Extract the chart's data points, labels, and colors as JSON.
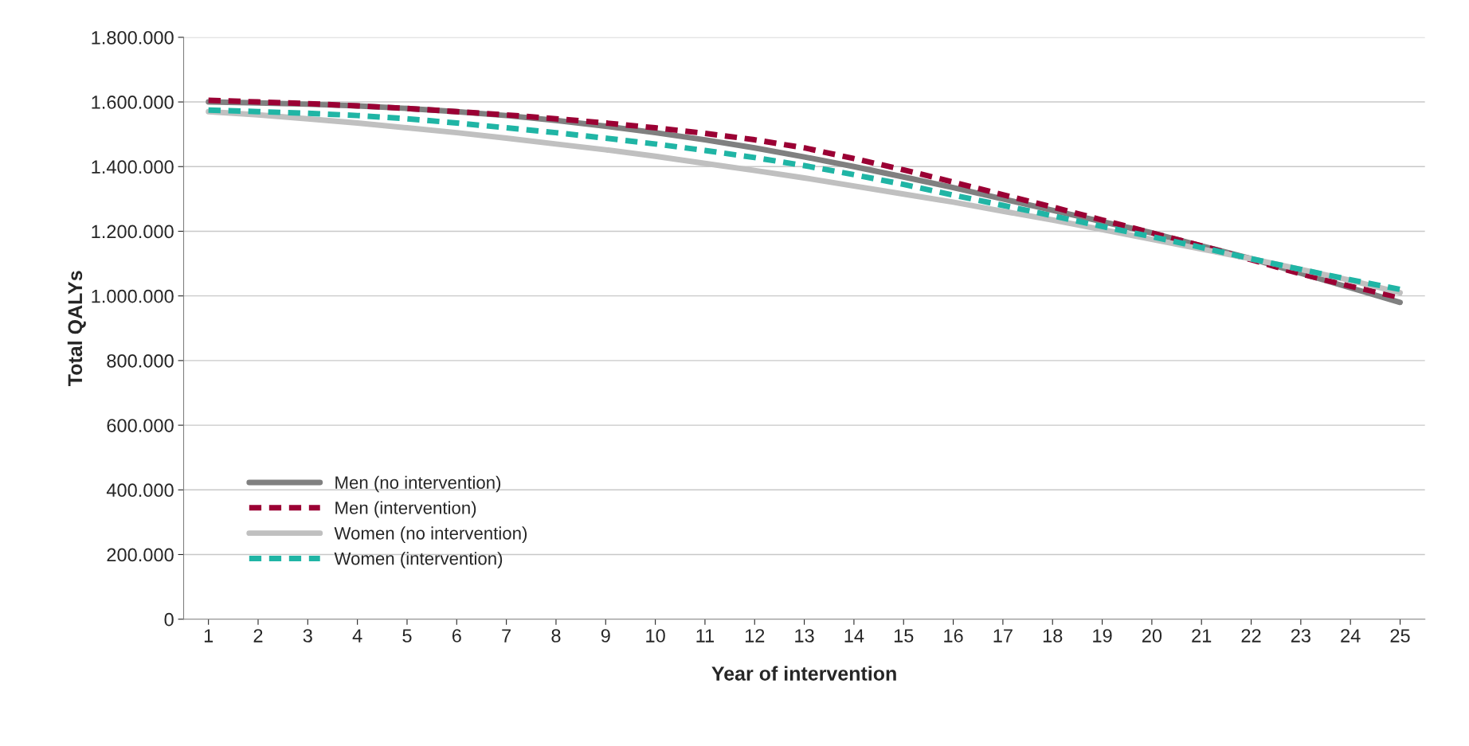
{
  "chart_data": {
    "type": "line",
    "xlabel": "Year of intervention",
    "ylabel": "Total QALYs",
    "categories": [
      "1",
      "2",
      "3",
      "4",
      "5",
      "6",
      "7",
      "8",
      "9",
      "10",
      "11",
      "12",
      "13",
      "14",
      "15",
      "16",
      "17",
      "18",
      "19",
      "20",
      "21",
      "22",
      "23",
      "24",
      "25"
    ],
    "ylim": [
      0,
      1800000
    ],
    "yticks": [
      0,
      {
        "value": 200000,
        "label": "200.000"
      },
      {
        "value": 400000,
        "label": "400.000"
      },
      {
        "value": 600000,
        "label": "600.000"
      },
      {
        "value": 800000,
        "label": "800.000"
      },
      {
        "value": 1000000,
        "label": "1.000.000"
      },
      {
        "value": 1200000,
        "label": "1.200.000"
      },
      {
        "value": 1400000,
        "label": "1.400.000"
      },
      {
        "value": 1600000,
        "label": "1.600.000"
      },
      {
        "value": 1800000,
        "label": "1.800.000"
      }
    ],
    "grid": "y",
    "legend": "bottom left",
    "marker": "none",
    "series": [
      {
        "name": "Men (no intervention)",
        "color": "#808080",
        "line_style": "solid",
        "values": [
          1600000,
          1597000,
          1593000,
          1588000,
          1580000,
          1570000,
          1558000,
          1543000,
          1525000,
          1505000,
          1483000,
          1458000,
          1430000,
          1400000,
          1368000,
          1335000,
          1300000,
          1265000,
          1230000,
          1195000,
          1155000,
          1115000,
          1070000,
          1025000,
          980000
        ]
      },
      {
        "name": "Men (intervention)",
        "color": "#9b0034",
        "line_style": "dashed",
        "values": [
          1605000,
          1600000,
          1595000,
          1588000,
          1580000,
          1570000,
          1560000,
          1548000,
          1535000,
          1520000,
          1503000,
          1483000,
          1458000,
          1425000,
          1390000,
          1352000,
          1313000,
          1275000,
          1235000,
          1195000,
          1155000,
          1112000,
          1068000,
          1030000,
          995000
        ]
      },
      {
        "name": "Women (no intervention)",
        "color": "#c0c0c0",
        "line_style": "solid",
        "values": [
          1570000,
          1560000,
          1548000,
          1535000,
          1520000,
          1505000,
          1488000,
          1470000,
          1452000,
          1432000,
          1410000,
          1388000,
          1365000,
          1340000,
          1315000,
          1290000,
          1262000,
          1235000,
          1205000,
          1175000,
          1145000,
          1115000,
          1082000,
          1048000,
          1010000
        ]
      },
      {
        "name": "Women (intervention)",
        "color": "#20b5a5",
        "line_style": "dashed",
        "values": [
          1575000,
          1570000,
          1565000,
          1558000,
          1548000,
          1535000,
          1520000,
          1505000,
          1488000,
          1470000,
          1450000,
          1428000,
          1403000,
          1375000,
          1345000,
          1312000,
          1280000,
          1248000,
          1215000,
          1183000,
          1150000,
          1115000,
          1082000,
          1050000,
          1020000
        ]
      }
    ]
  }
}
